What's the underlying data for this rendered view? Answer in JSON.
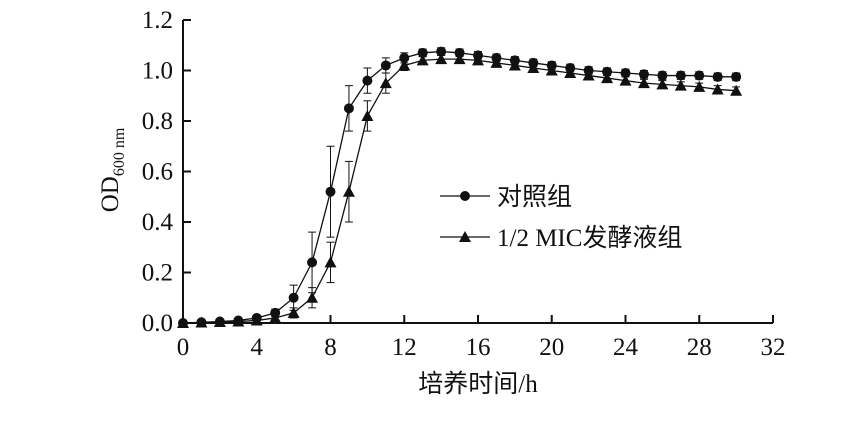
{
  "chart_data": {
    "type": "line",
    "xlabel": "培养时间/h",
    "ylabel": {
      "main": "OD",
      "subscript": "600 nm"
    },
    "xlim": [
      0,
      32
    ],
    "ylim": [
      0,
      1.2
    ],
    "x_ticks": [
      "0",
      "4",
      "8",
      "12",
      "16",
      "20",
      "24",
      "28",
      "32"
    ],
    "y_ticks": [
      "0.0",
      "0.2",
      "0.4",
      "0.6",
      "0.8",
      "1.0",
      "1.2"
    ],
    "grid": false,
    "legend_position": "center-right",
    "x": [
      0,
      1,
      2,
      3,
      4,
      5,
      6,
      7,
      8,
      9,
      10,
      11,
      12,
      13,
      14,
      15,
      16,
      17,
      18,
      19,
      20,
      21,
      22,
      23,
      24,
      25,
      26,
      27,
      28,
      29,
      30
    ],
    "series": [
      {
        "name": "对照组",
        "marker": "circle",
        "color": "#111111",
        "values": [
          0.0,
          0.003,
          0.006,
          0.01,
          0.02,
          0.04,
          0.1,
          0.24,
          0.52,
          0.85,
          0.96,
          1.02,
          1.05,
          1.07,
          1.075,
          1.07,
          1.06,
          1.05,
          1.04,
          1.03,
          1.02,
          1.01,
          1.0,
          0.995,
          0.99,
          0.985,
          0.98,
          0.98,
          0.98,
          0.975,
          0.975
        ],
        "errors": [
          0.005,
          0.005,
          0.005,
          0.006,
          0.008,
          0.015,
          0.05,
          0.12,
          0.18,
          0.09,
          0.05,
          0.03,
          0.02,
          0.015,
          0.015,
          0.015,
          0.015,
          0.015,
          0.015,
          0.015,
          0.015,
          0.015,
          0.015,
          0.015,
          0.015,
          0.015,
          0.015,
          0.015,
          0.015,
          0.015,
          0.015
        ]
      },
      {
        "name": "1/2 MIC发酵液组",
        "marker": "triangle",
        "color": "#111111",
        "values": [
          0.0,
          0.002,
          0.004,
          0.006,
          0.01,
          0.02,
          0.04,
          0.1,
          0.24,
          0.52,
          0.82,
          0.95,
          1.02,
          1.04,
          1.045,
          1.045,
          1.04,
          1.03,
          1.02,
          1.01,
          1.0,
          0.99,
          0.98,
          0.97,
          0.96,
          0.95,
          0.945,
          0.94,
          0.935,
          0.925,
          0.92
        ],
        "errors": [
          0.004,
          0.004,
          0.004,
          0.005,
          0.006,
          0.008,
          0.02,
          0.04,
          0.08,
          0.12,
          0.06,
          0.04,
          0.02,
          0.015,
          0.015,
          0.015,
          0.015,
          0.015,
          0.015,
          0.015,
          0.015,
          0.015,
          0.015,
          0.015,
          0.015,
          0.015,
          0.015,
          0.015,
          0.015,
          0.015,
          0.015
        ]
      }
    ]
  }
}
